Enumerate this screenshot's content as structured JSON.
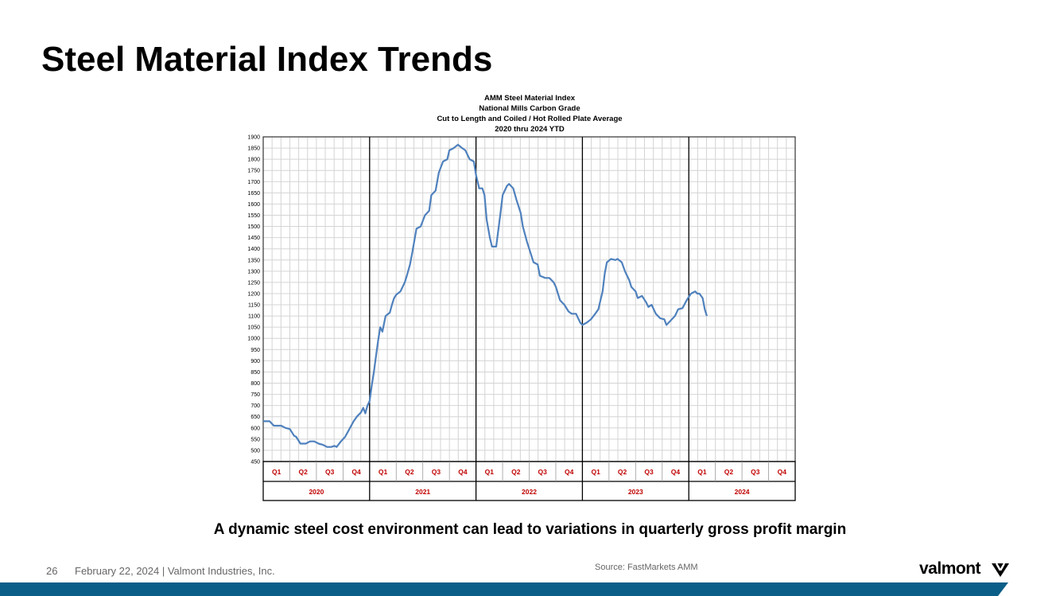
{
  "page": {
    "title": "Steel Material Index Trends",
    "subtitle": "A dynamic steel cost environment can lead to variations in quarterly gross profit margin",
    "footer": {
      "page_number": "26",
      "text": "February 22, 2024  | Valmont Industries, Inc.",
      "source": "Source: FastMarkets AMM"
    },
    "logo_text": "valmont",
    "colors": {
      "line": "#4f81bd",
      "quarter_label": "#c00000",
      "footer_bar": "#0b5e88"
    }
  },
  "chart_data": {
    "type": "line",
    "title_lines": [
      "AMM Steel Material Index",
      "National Mills Carbon Grade",
      "Cut to Length and Coiled / Hot Rolled Plate Average",
      "2020 thru 2024 YTD"
    ],
    "ylim": [
      450,
      1900
    ],
    "y_ticks": [
      450,
      500,
      550,
      600,
      650,
      700,
      750,
      800,
      850,
      900,
      950,
      1000,
      1050,
      1100,
      1150,
      1200,
      1250,
      1300,
      1350,
      1400,
      1450,
      1500,
      1550,
      1600,
      1650,
      1700,
      1750,
      1800,
      1850,
      1900
    ],
    "quarter_labels": [
      "Q1",
      "Q2",
      "Q3",
      "Q4",
      "Q1",
      "Q2",
      "Q3",
      "Q4",
      "Q1",
      "Q2",
      "Q3",
      "Q4",
      "Q1",
      "Q2",
      "Q3",
      "Q4",
      "Q1",
      "Q2",
      "Q3",
      "Q4"
    ],
    "years": [
      "2020",
      "2021",
      "2022",
      "2023",
      "2024"
    ],
    "grid": true,
    "series": [
      {
        "values": [
          [
            2020.0,
            630
          ],
          [
            2020.06,
            630
          ],
          [
            2020.1,
            610
          ],
          [
            2020.17,
            610
          ],
          [
            2020.21,
            600
          ],
          [
            2020.25,
            595
          ],
          [
            2020.29,
            565
          ],
          [
            2020.31,
            560
          ],
          [
            2020.35,
            530
          ],
          [
            2020.4,
            530
          ],
          [
            2020.44,
            540
          ],
          [
            2020.48,
            540
          ],
          [
            2020.52,
            530
          ],
          [
            2020.56,
            525
          ],
          [
            2020.6,
            515
          ],
          [
            2020.64,
            515
          ],
          [
            2020.67,
            520
          ],
          [
            2020.69,
            515
          ],
          [
            2020.73,
            540
          ],
          [
            2020.77,
            560
          ],
          [
            2020.81,
            595
          ],
          [
            2020.85,
            630
          ],
          [
            2020.88,
            650
          ],
          [
            2020.92,
            670
          ],
          [
            2020.94,
            690
          ],
          [
            2020.96,
            665
          ],
          [
            2020.98,
            700
          ],
          [
            2021.0,
            720
          ],
          [
            2021.02,
            790
          ],
          [
            2021.04,
            850
          ],
          [
            2021.06,
            920
          ],
          [
            2021.08,
            990
          ],
          [
            2021.1,
            1050
          ],
          [
            2021.12,
            1030
          ],
          [
            2021.15,
            1100
          ],
          [
            2021.19,
            1115
          ],
          [
            2021.21,
            1150
          ],
          [
            2021.23,
            1180
          ],
          [
            2021.25,
            1195
          ],
          [
            2021.29,
            1210
          ],
          [
            2021.33,
            1250
          ],
          [
            2021.35,
            1280
          ],
          [
            2021.38,
            1330
          ],
          [
            2021.4,
            1380
          ],
          [
            2021.44,
            1490
          ],
          [
            2021.48,
            1500
          ],
          [
            2021.52,
            1550
          ],
          [
            2021.56,
            1570
          ],
          [
            2021.58,
            1640
          ],
          [
            2021.62,
            1660
          ],
          [
            2021.65,
            1740
          ],
          [
            2021.69,
            1790
          ],
          [
            2021.73,
            1800
          ],
          [
            2021.75,
            1840
          ],
          [
            2021.79,
            1850
          ],
          [
            2021.83,
            1865
          ],
          [
            2021.87,
            1850
          ],
          [
            2021.9,
            1840
          ],
          [
            2021.94,
            1800
          ],
          [
            2021.98,
            1790
          ],
          [
            2022.0,
            1730
          ],
          [
            2022.03,
            1670
          ],
          [
            2022.06,
            1670
          ],
          [
            2022.08,
            1640
          ],
          [
            2022.1,
            1530
          ],
          [
            2022.13,
            1450
          ],
          [
            2022.15,
            1410
          ],
          [
            2022.19,
            1410
          ],
          [
            2022.23,
            1560
          ],
          [
            2022.25,
            1640
          ],
          [
            2022.29,
            1680
          ],
          [
            2022.31,
            1690
          ],
          [
            2022.35,
            1670
          ],
          [
            2022.38,
            1620
          ],
          [
            2022.42,
            1560
          ],
          [
            2022.44,
            1500
          ],
          [
            2022.48,
            1430
          ],
          [
            2022.52,
            1370
          ],
          [
            2022.54,
            1340
          ],
          [
            2022.58,
            1330
          ],
          [
            2022.6,
            1280
          ],
          [
            2022.65,
            1270
          ],
          [
            2022.69,
            1270
          ],
          [
            2022.73,
            1250
          ],
          [
            2022.75,
            1230
          ],
          [
            2022.79,
            1170
          ],
          [
            2022.83,
            1150
          ],
          [
            2022.87,
            1120
          ],
          [
            2022.9,
            1110
          ],
          [
            2022.94,
            1110
          ],
          [
            2022.98,
            1070
          ],
          [
            2023.0,
            1060
          ],
          [
            2023.04,
            1070
          ],
          [
            2023.08,
            1085
          ],
          [
            2023.12,
            1110
          ],
          [
            2023.15,
            1130
          ],
          [
            2023.17,
            1170
          ],
          [
            2023.19,
            1210
          ],
          [
            2023.21,
            1290
          ],
          [
            2023.23,
            1340
          ],
          [
            2023.27,
            1355
          ],
          [
            2023.31,
            1350
          ],
          [
            2023.33,
            1355
          ],
          [
            2023.37,
            1340
          ],
          [
            2023.4,
            1300
          ],
          [
            2023.44,
            1260
          ],
          [
            2023.46,
            1230
          ],
          [
            2023.5,
            1210
          ],
          [
            2023.52,
            1180
          ],
          [
            2023.56,
            1190
          ],
          [
            2023.6,
            1160
          ],
          [
            2023.62,
            1140
          ],
          [
            2023.65,
            1150
          ],
          [
            2023.69,
            1110
          ],
          [
            2023.73,
            1090
          ],
          [
            2023.77,
            1085
          ],
          [
            2023.79,
            1060
          ],
          [
            2023.83,
            1080
          ],
          [
            2023.87,
            1100
          ],
          [
            2023.9,
            1130
          ],
          [
            2023.94,
            1135
          ],
          [
            2023.98,
            1170
          ],
          [
            2024.02,
            1200
          ],
          [
            2024.06,
            1210
          ],
          [
            2024.08,
            1200
          ],
          [
            2024.1,
            1200
          ],
          [
            2024.13,
            1180
          ],
          [
            2024.15,
            1130
          ],
          [
            2024.17,
            1100
          ]
        ]
      }
    ]
  }
}
